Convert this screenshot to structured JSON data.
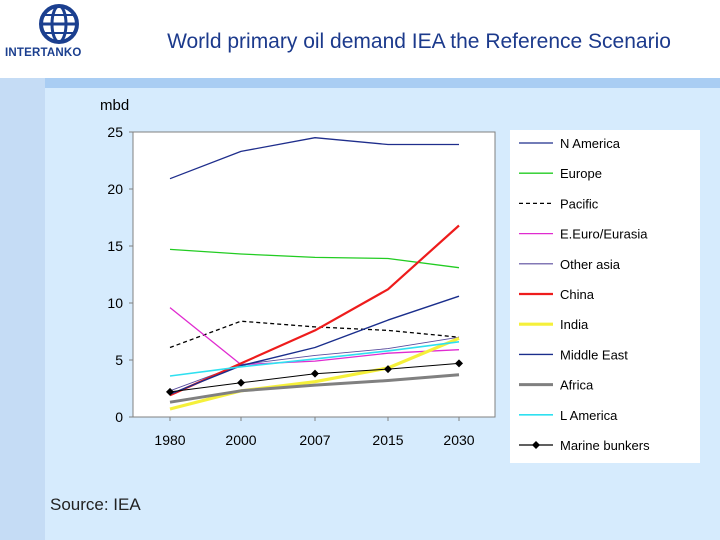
{
  "title": "World primary oil demand IEA the Reference Scenario",
  "logo": {
    "text": "INTERTANKO"
  },
  "source": "Source: IEA",
  "colors": {
    "primary": "#1c3a8c",
    "background": "#d6ebfd",
    "accent": "#a9cdf3"
  },
  "chart_data": {
    "type": "line",
    "title": "World primary oil demand IEA the Reference Scenario",
    "ylabel": "mbd",
    "xlabel": "",
    "categories": [
      "1980",
      "2000",
      "2007",
      "2015",
      "2030"
    ],
    "ylim": [
      0,
      25
    ],
    "yticks": [
      "0",
      "5",
      "10",
      "15",
      "20",
      "25"
    ],
    "grid": false,
    "legend": "right",
    "series": [
      {
        "name": "N America",
        "color": "#1f2e8c",
        "width": 1.3,
        "dash": "",
        "marker": "",
        "values": [
          20.9,
          23.3,
          24.5,
          23.9,
          23.9
        ]
      },
      {
        "name": "Europe",
        "color": "#22cc22",
        "width": 1.3,
        "dash": "",
        "marker": "",
        "values": [
          14.7,
          14.3,
          14.0,
          13.9,
          13.1
        ]
      },
      {
        "name": "Pacific",
        "color": "#000000",
        "width": 1.3,
        "dash": "4,3",
        "marker": "",
        "values": [
          6.1,
          8.4,
          7.9,
          7.6,
          7.0
        ]
      },
      {
        "name": "E.Euro/Eurasia",
        "color": "#e02bd0",
        "width": 1.3,
        "dash": "",
        "marker": "",
        "values": [
          9.6,
          4.6,
          4.9,
          5.6,
          5.9
        ]
      },
      {
        "name": "Other asia",
        "color": "#5a4c9e",
        "width": 0.9,
        "dash": "",
        "marker": "",
        "values": [
          2.3,
          4.6,
          5.4,
          6.0,
          7.0
        ]
      },
      {
        "name": "China",
        "color": "#ee1c1c",
        "width": 2.2,
        "dash": "",
        "marker": "",
        "values": [
          1.9,
          4.7,
          7.6,
          11.2,
          16.8
        ]
      },
      {
        "name": "India",
        "color": "#f5f03a",
        "width": 3.2,
        "dash": "",
        "marker": "",
        "values": [
          0.7,
          2.3,
          3.1,
          4.3,
          6.9
        ]
      },
      {
        "name": "Middle East",
        "color": "#1a2e8c",
        "width": 1.4,
        "dash": "",
        "marker": "",
        "values": [
          2.0,
          4.5,
          6.1,
          8.5,
          10.6
        ]
      },
      {
        "name": "Africa",
        "color": "#808080",
        "width": 3.0,
        "dash": "",
        "marker": "",
        "values": [
          1.3,
          2.3,
          2.8,
          3.2,
          3.7
        ]
      },
      {
        "name": "L America",
        "color": "#2fe0f0",
        "width": 1.6,
        "dash": "",
        "marker": "",
        "values": [
          3.6,
          4.4,
          5.1,
          5.8,
          6.6
        ]
      },
      {
        "name": "Marine bunkers",
        "color": "#000000",
        "width": 1.0,
        "dash": "",
        "marker": "diamond",
        "values": [
          2.2,
          3.0,
          3.8,
          4.2,
          4.7
        ]
      }
    ]
  }
}
